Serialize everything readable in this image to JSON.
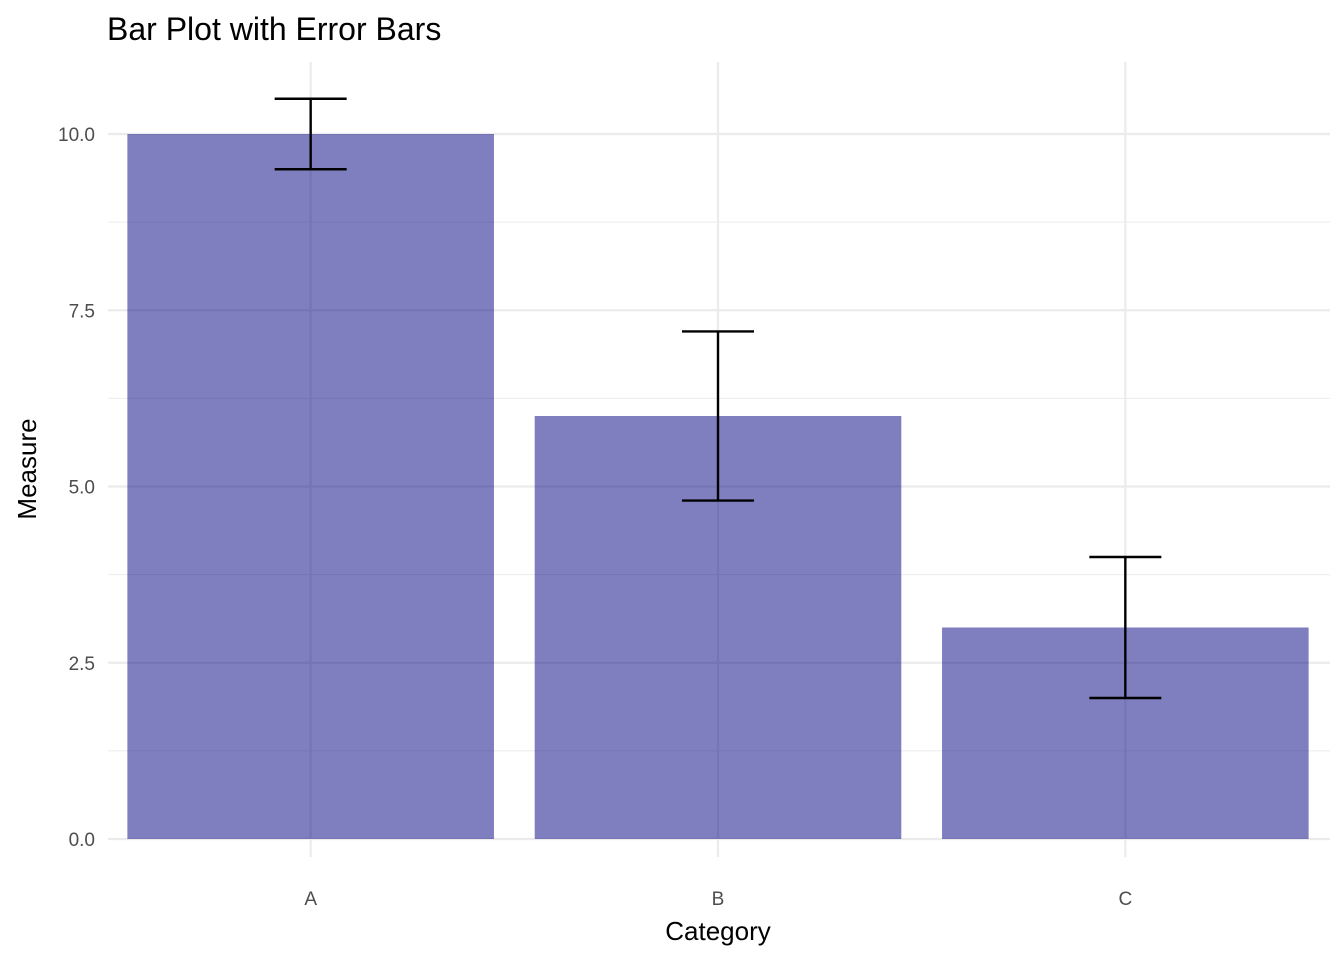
{
  "chart_data": {
    "type": "bar",
    "title": "Bar Plot with Error Bars",
    "xlabel": "Category",
    "ylabel": "Measure",
    "categories": [
      "A",
      "B",
      "C"
    ],
    "values": [
      10,
      6,
      3
    ],
    "error_bars": {
      "lower": [
        9.5,
        4.8,
        2
      ],
      "upper": [
        10.5,
        7.2,
        4
      ]
    },
    "ylim": [
      0,
      11
    ],
    "y_ticks": [
      0,
      2.5,
      5,
      7.5,
      10
    ],
    "y_tick_labels": [
      "0.0",
      "2.5",
      "5.0",
      "7.5",
      "10.0"
    ],
    "grid": true,
    "legend": "none",
    "colors": {
      "bar": "#7f7fbb",
      "error_bar": "#000000",
      "grid": "#ebebeb"
    }
  }
}
